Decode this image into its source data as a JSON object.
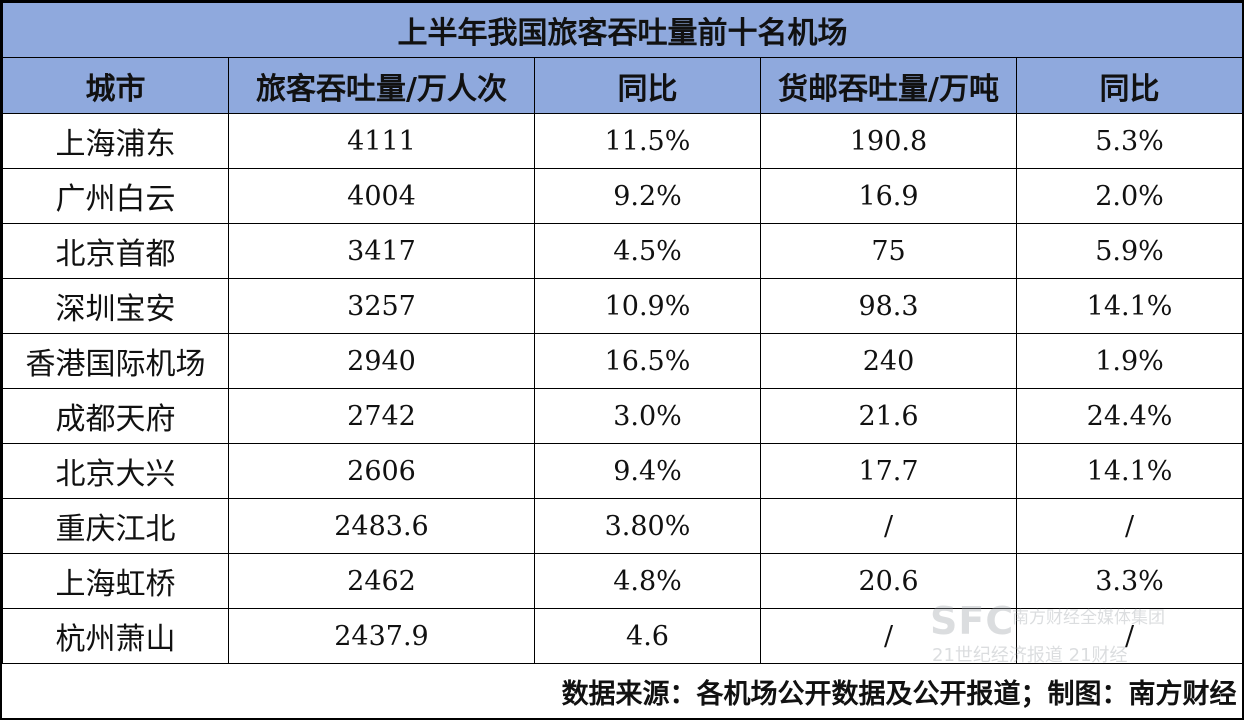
{
  "table": {
    "title": "上半年我国旅客吞吐量前十名机场",
    "headers": [
      "城市",
      "旅客吞吐量/万人次",
      "同比",
      "货邮吞吐量/万吨",
      "同比"
    ],
    "rows": [
      [
        "上海浦东",
        "4111",
        "11.5%",
        "190.8",
        "5.3%"
      ],
      [
        "广州白云",
        "4004",
        "9.2%",
        "16.9",
        "2.0%"
      ],
      [
        "北京首都",
        "3417",
        "4.5%",
        "75",
        "5.9%"
      ],
      [
        "深圳宝安",
        "3257",
        "10.9%",
        "98.3",
        "14.1%"
      ],
      [
        "香港国际机场",
        "2940",
        "16.5%",
        "240",
        "1.9%"
      ],
      [
        "成都天府",
        "2742",
        "3.0%",
        "21.6",
        "24.4%"
      ],
      [
        "北京大兴",
        "2606",
        "9.4%",
        "17.7",
        "14.1%"
      ],
      [
        "重庆江北",
        "2483.6",
        "3.80%",
        "/",
        "/"
      ],
      [
        "上海虹桥",
        "2462",
        "4.8%",
        "20.6",
        "3.3%"
      ],
      [
        "杭州萧山",
        "2437.9",
        "4.6",
        "/",
        "/"
      ]
    ],
    "footer": "数据来源：各机场公开数据及公开报道；制图：南方财经"
  },
  "watermark": {
    "logo": "SFC",
    "line1": "南方财经全媒体集团",
    "line2": "21世纪经济报道 21财经"
  }
}
